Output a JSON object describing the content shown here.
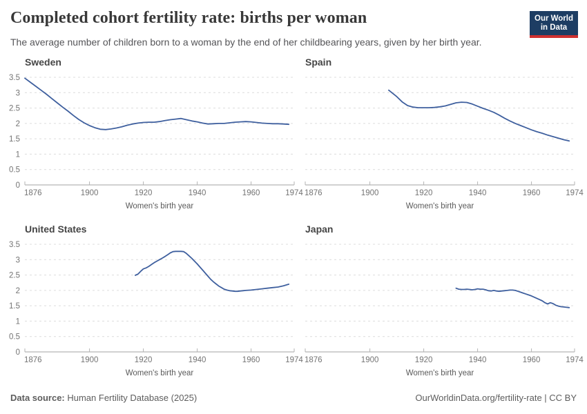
{
  "header": {
    "title": "Completed cohort fertility rate: births per woman",
    "subtitle": "The average number of children born to a woman by the end of her childbearing years, given by her birth year.",
    "logo": {
      "line1": "Our World",
      "line2": "in Data",
      "bg_color": "#1d3d63",
      "accent_color": "#cf3130"
    }
  },
  "axis": {
    "x_label": "Women's birth year",
    "x_domain": [
      1876,
      1976
    ],
    "x_ticks": [
      1876,
      1900,
      1920,
      1940,
      1960,
      1974
    ],
    "y_domain": [
      0,
      3.5
    ],
    "y_ticks": [
      0,
      0.5,
      1,
      1.5,
      2,
      2.5,
      3,
      3.5
    ],
    "grid": "dashed"
  },
  "colors": {
    "line": "#3e5f9e",
    "grid": "#dcdcdc",
    "axis": "#a3a3a3",
    "tick_mark": "#b3b3b3",
    "tick_label": "#737373",
    "axis_title": "#5a5a5a",
    "entity_title": "#454545"
  },
  "chart_data": [
    {
      "type": "line",
      "id": "sweden",
      "title": "Sweden",
      "xlabel": "Women's birth year",
      "xlim": [
        1876,
        1976
      ],
      "ylim": [
        0,
        3.5
      ],
      "show_y_labels": true,
      "points": [
        [
          1876,
          3.47
        ],
        [
          1878,
          3.34
        ],
        [
          1880,
          3.21
        ],
        [
          1882,
          3.08
        ],
        [
          1884,
          2.95
        ],
        [
          1886,
          2.81
        ],
        [
          1888,
          2.67
        ],
        [
          1890,
          2.53
        ],
        [
          1892,
          2.4
        ],
        [
          1894,
          2.26
        ],
        [
          1896,
          2.13
        ],
        [
          1898,
          2.02
        ],
        [
          1900,
          1.93
        ],
        [
          1902,
          1.86
        ],
        [
          1904,
          1.81
        ],
        [
          1906,
          1.8
        ],
        [
          1908,
          1.82
        ],
        [
          1910,
          1.85
        ],
        [
          1912,
          1.89
        ],
        [
          1914,
          1.94
        ],
        [
          1916,
          1.98
        ],
        [
          1918,
          2.01
        ],
        [
          1920,
          2.03
        ],
        [
          1922,
          2.04
        ],
        [
          1924,
          2.04
        ],
        [
          1926,
          2.06
        ],
        [
          1928,
          2.09
        ],
        [
          1930,
          2.12
        ],
        [
          1932,
          2.14
        ],
        [
          1934,
          2.16
        ],
        [
          1936,
          2.12
        ],
        [
          1938,
          2.08
        ],
        [
          1940,
          2.05
        ],
        [
          1942,
          2.01
        ],
        [
          1944,
          1.98
        ],
        [
          1946,
          1.99
        ],
        [
          1948,
          2.0
        ],
        [
          1950,
          2.0
        ],
        [
          1952,
          2.02
        ],
        [
          1954,
          2.04
        ],
        [
          1956,
          2.05
        ],
        [
          1958,
          2.06
        ],
        [
          1960,
          2.05
        ],
        [
          1962,
          2.03
        ],
        [
          1964,
          2.01
        ],
        [
          1966,
          2.0
        ],
        [
          1968,
          1.99
        ],
        [
          1970,
          1.99
        ],
        [
          1972,
          1.98
        ],
        [
          1974,
          1.97
        ]
      ]
    },
    {
      "type": "line",
      "id": "spain",
      "title": "Spain",
      "xlabel": "Women's birth year",
      "xlim": [
        1876,
        1976
      ],
      "ylim": [
        0,
        3.5
      ],
      "show_y_labels": false,
      "points": [
        [
          1907,
          3.08
        ],
        [
          1908,
          3.01
        ],
        [
          1910,
          2.87
        ],
        [
          1912,
          2.7
        ],
        [
          1914,
          2.58
        ],
        [
          1916,
          2.53
        ],
        [
          1918,
          2.51
        ],
        [
          1920,
          2.51
        ],
        [
          1922,
          2.51
        ],
        [
          1924,
          2.52
        ],
        [
          1926,
          2.54
        ],
        [
          1928,
          2.57
        ],
        [
          1930,
          2.62
        ],
        [
          1932,
          2.67
        ],
        [
          1934,
          2.69
        ],
        [
          1936,
          2.68
        ],
        [
          1938,
          2.63
        ],
        [
          1940,
          2.56
        ],
        [
          1942,
          2.49
        ],
        [
          1944,
          2.43
        ],
        [
          1946,
          2.36
        ],
        [
          1948,
          2.27
        ],
        [
          1950,
          2.17
        ],
        [
          1952,
          2.08
        ],
        [
          1954,
          2.0
        ],
        [
          1956,
          1.93
        ],
        [
          1958,
          1.86
        ],
        [
          1960,
          1.79
        ],
        [
          1962,
          1.73
        ],
        [
          1964,
          1.68
        ],
        [
          1966,
          1.62
        ],
        [
          1968,
          1.57
        ],
        [
          1970,
          1.52
        ],
        [
          1972,
          1.47
        ],
        [
          1974,
          1.43
        ]
      ]
    },
    {
      "type": "line",
      "id": "united-states",
      "title": "United States",
      "xlabel": "Women's birth year",
      "xlim": [
        1876,
        1976
      ],
      "ylim": [
        0,
        3.5
      ],
      "show_y_labels": true,
      "points": [
        [
          1917,
          2.49
        ],
        [
          1918,
          2.53
        ],
        [
          1919,
          2.62
        ],
        [
          1920,
          2.7
        ],
        [
          1921,
          2.73
        ],
        [
          1922,
          2.78
        ],
        [
          1923,
          2.84
        ],
        [
          1924,
          2.9
        ],
        [
          1925,
          2.95
        ],
        [
          1926,
          3.0
        ],
        [
          1927,
          3.05
        ],
        [
          1928,
          3.1
        ],
        [
          1929,
          3.16
        ],
        [
          1930,
          3.22
        ],
        [
          1931,
          3.26
        ],
        [
          1932,
          3.27
        ],
        [
          1933,
          3.27
        ],
        [
          1934,
          3.27
        ],
        [
          1935,
          3.26
        ],
        [
          1936,
          3.2
        ],
        [
          1937,
          3.12
        ],
        [
          1938,
          3.04
        ],
        [
          1939,
          2.95
        ],
        [
          1940,
          2.86
        ],
        [
          1941,
          2.76
        ],
        [
          1942,
          2.66
        ],
        [
          1943,
          2.56
        ],
        [
          1944,
          2.46
        ],
        [
          1945,
          2.36
        ],
        [
          1946,
          2.28
        ],
        [
          1947,
          2.21
        ],
        [
          1948,
          2.14
        ],
        [
          1949,
          2.09
        ],
        [
          1950,
          2.04
        ],
        [
          1951,
          2.01
        ],
        [
          1952,
          1.99
        ],
        [
          1953,
          1.98
        ],
        [
          1954,
          1.97
        ],
        [
          1955,
          1.97
        ],
        [
          1956,
          1.98
        ],
        [
          1957,
          1.99
        ],
        [
          1958,
          2.0
        ],
        [
          1960,
          2.01
        ],
        [
          1962,
          2.03
        ],
        [
          1964,
          2.05
        ],
        [
          1966,
          2.07
        ],
        [
          1968,
          2.09
        ],
        [
          1970,
          2.11
        ],
        [
          1972,
          2.15
        ],
        [
          1974,
          2.2
        ]
      ]
    },
    {
      "type": "line",
      "id": "japan",
      "title": "Japan",
      "xlabel": "Women's birth year",
      "xlim": [
        1876,
        1976
      ],
      "ylim": [
        0,
        3.5
      ],
      "show_y_labels": false,
      "points": [
        [
          1932,
          2.07
        ],
        [
          1933,
          2.04
        ],
        [
          1934,
          2.03
        ],
        [
          1935,
          2.03
        ],
        [
          1936,
          2.04
        ],
        [
          1937,
          2.03
        ],
        [
          1938,
          2.02
        ],
        [
          1939,
          2.03
        ],
        [
          1940,
          2.05
        ],
        [
          1941,
          2.04
        ],
        [
          1942,
          2.04
        ],
        [
          1943,
          2.02
        ],
        [
          1944,
          1.99
        ],
        [
          1945,
          1.98
        ],
        [
          1946,
          2.0
        ],
        [
          1947,
          1.98
        ],
        [
          1948,
          1.97
        ],
        [
          1949,
          1.98
        ],
        [
          1950,
          1.99
        ],
        [
          1951,
          2.0
        ],
        [
          1952,
          2.01
        ],
        [
          1953,
          2.01
        ],
        [
          1954,
          2.0
        ],
        [
          1955,
          1.97
        ],
        [
          1956,
          1.94
        ],
        [
          1957,
          1.91
        ],
        [
          1958,
          1.88
        ],
        [
          1959,
          1.85
        ],
        [
          1960,
          1.82
        ],
        [
          1961,
          1.78
        ],
        [
          1962,
          1.74
        ],
        [
          1963,
          1.7
        ],
        [
          1964,
          1.66
        ],
        [
          1965,
          1.6
        ],
        [
          1966,
          1.56
        ],
        [
          1967,
          1.6
        ],
        [
          1968,
          1.57
        ],
        [
          1969,
          1.52
        ],
        [
          1970,
          1.49
        ],
        [
          1971,
          1.47
        ],
        [
          1972,
          1.46
        ],
        [
          1973,
          1.45
        ],
        [
          1974,
          1.44
        ]
      ]
    }
  ],
  "footer": {
    "source_label": "Data source:",
    "source_value": " Human Fertility Database (2025)",
    "right_text": "OurWorldinData.org/fertility-rate | CC BY"
  }
}
